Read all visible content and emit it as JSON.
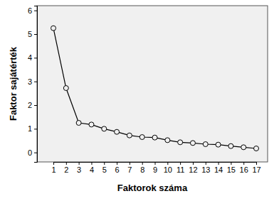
{
  "chart_data": {
    "type": "line",
    "x_label": "Faktorok száma",
    "y_label": "Faktor sajátérték",
    "categories": [
      "1",
      "2",
      "3",
      "4",
      "5",
      "6",
      "7",
      "8",
      "9",
      "10",
      "11",
      "12",
      "13",
      "14",
      "15",
      "16",
      "17"
    ],
    "values": [
      5.25,
      2.72,
      1.25,
      1.18,
      1.0,
      0.87,
      0.72,
      0.65,
      0.63,
      0.52,
      0.43,
      0.4,
      0.35,
      0.33,
      0.27,
      0.22,
      0.17
    ],
    "color": "#000000",
    "marker": "circle",
    "line_style": "solid",
    "ylim": [
      -0.4,
      6.2
    ],
    "yticks": [
      0,
      1,
      2,
      3,
      4,
      5,
      6
    ],
    "grid": false
  }
}
